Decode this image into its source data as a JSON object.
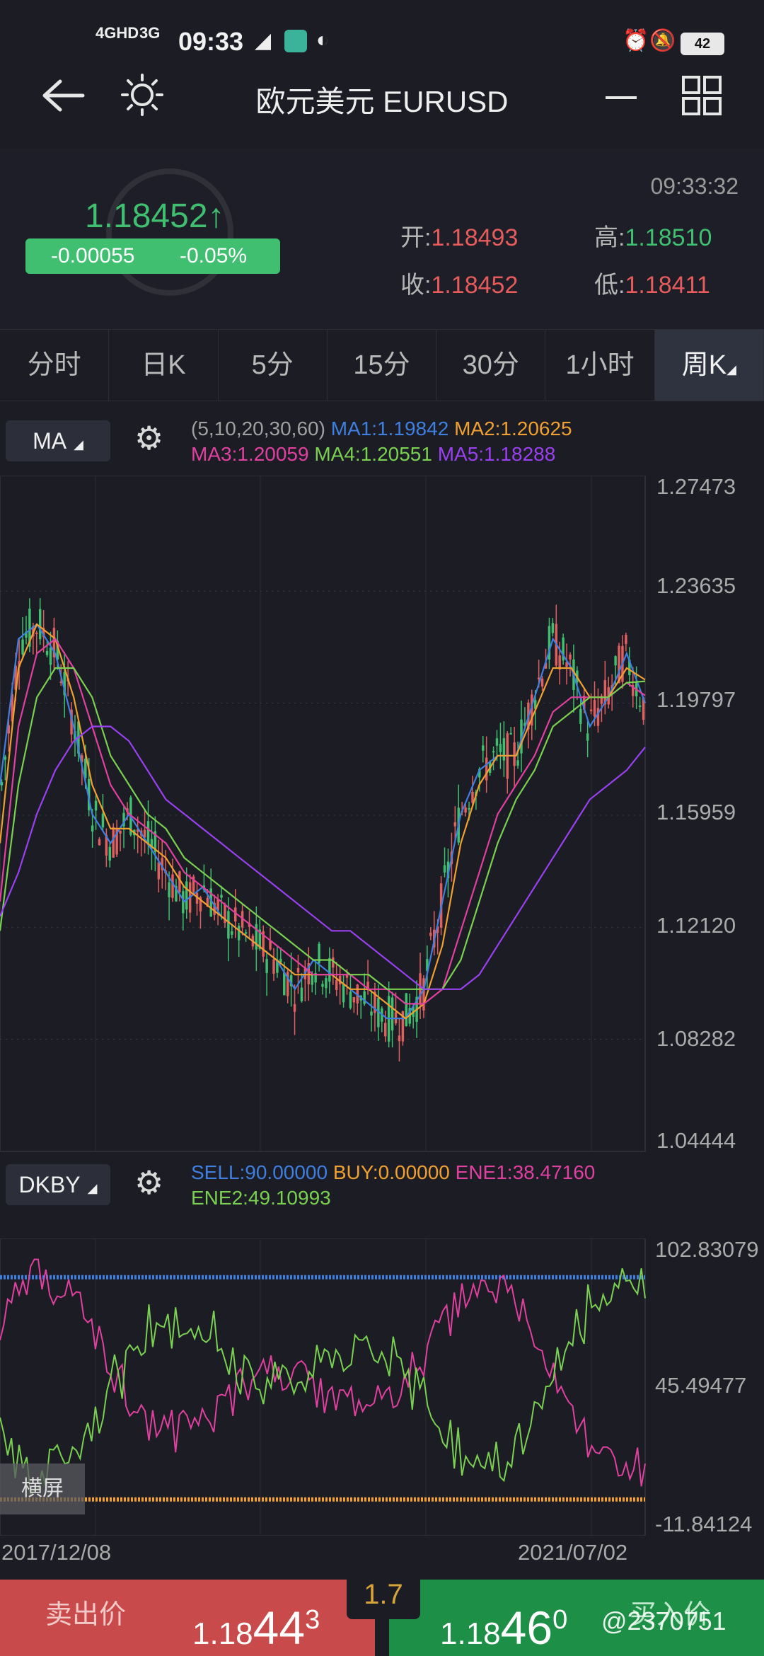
{
  "status_bar": {
    "network1": "4GHD",
    "network2": "3G",
    "time": "09:33",
    "battery": "42",
    "app_icon": "BOSS直聘"
  },
  "header": {
    "title": "欧元美元 EURUSD"
  },
  "quote": {
    "price": "1.18452",
    "arrow": "↑",
    "change": "-0.00055",
    "change_pct": "-0.05%",
    "time": "09:33:32",
    "open_label": "开:",
    "open": "1.18493",
    "high_label": "高:",
    "high": "1.18510",
    "close_label": "收:",
    "close": "1.18452",
    "low_label": "低:",
    "low": "1.18411"
  },
  "tabs": [
    "分时",
    "日K",
    "5分",
    "15分",
    "30分",
    "1小时",
    "周K"
  ],
  "active_tab": "周K",
  "ma_panel": {
    "button": "MA",
    "params": "(5,10,20,30,60)",
    "ma1": "MA1:1.19842",
    "ma2": "MA2:1.20625",
    "ma3": "MA3:1.20059",
    "ma4": "MA4:1.20551",
    "ma5": "MA5:1.18288",
    "colors": {
      "ma1": "#3f7fe0",
      "ma2": "#f0a030",
      "ma3": "#e040a0",
      "ma4": "#7ad050",
      "ma5": "#9a40f0"
    },
    "y_ticks": [
      "1.27473",
      "1.23635",
      "1.19797",
      "1.15959",
      "1.12120",
      "1.08282",
      "1.04444"
    ]
  },
  "dkby_panel": {
    "button": "DKBY",
    "sell": "SELL:90.00000",
    "buy": "BUY:0.00000",
    "ene1": "ENE1:38.47160",
    "ene2": "ENE2:49.10993",
    "y_ticks": [
      "102.83079",
      "45.49477",
      "-11.84124"
    ]
  },
  "x_axis": {
    "start": "2017/12/08",
    "end": "2021/07/02"
  },
  "landscape_button": "横屏",
  "trade_bar": {
    "sell_label": "卖出价",
    "sell_price_main": "1.18",
    "sell_price_big": "44",
    "sell_price_sup": "3",
    "spread": "1.7",
    "buy_label": "买入价",
    "buy_price_main": "1.18",
    "buy_price_big": "46",
    "buy_price_sup": "0",
    "watermark": "@2370751"
  },
  "chart_data": {
    "type": "line",
    "x_start": "2017/12/08",
    "x_end": "2021/07/02",
    "ylim": [
      1.04444,
      1.27473
    ],
    "series": [
      {
        "name": "MA1",
        "values": [
          1.17,
          1.22,
          1.225,
          1.215,
          1.19,
          1.16,
          1.15,
          1.16,
          1.15,
          1.14,
          1.13,
          1.135,
          1.125,
          1.12,
          1.115,
          1.11,
          1.1,
          1.11,
          1.105,
          1.1,
          1.095,
          1.09,
          1.09,
          1.1,
          1.13,
          1.16,
          1.175,
          1.18,
          1.18,
          1.2,
          1.22,
          1.21,
          1.19,
          1.2,
          1.215,
          1.198
        ]
      },
      {
        "name": "MA2",
        "values": [
          1.15,
          1.21,
          1.225,
          1.22,
          1.2,
          1.17,
          1.155,
          1.155,
          1.15,
          1.145,
          1.135,
          1.13,
          1.125,
          1.12,
          1.115,
          1.11,
          1.105,
          1.105,
          1.105,
          1.1,
          1.1,
          1.095,
          1.09,
          1.095,
          1.115,
          1.15,
          1.17,
          1.18,
          1.18,
          1.195,
          1.21,
          1.21,
          1.2,
          1.2,
          1.21,
          1.206
        ]
      },
      {
        "name": "MA3",
        "values": [
          1.13,
          1.19,
          1.215,
          1.22,
          1.21,
          1.19,
          1.17,
          1.16,
          1.155,
          1.15,
          1.14,
          1.135,
          1.13,
          1.125,
          1.12,
          1.115,
          1.11,
          1.105,
          1.105,
          1.105,
          1.1,
          1.1,
          1.095,
          1.095,
          1.1,
          1.12,
          1.14,
          1.16,
          1.17,
          1.18,
          1.195,
          1.2,
          1.2,
          1.2,
          1.205,
          1.2006
        ]
      },
      {
        "name": "MA4",
        "values": [
          1.12,
          1.17,
          1.2,
          1.21,
          1.21,
          1.2,
          1.18,
          1.17,
          1.16,
          1.155,
          1.145,
          1.14,
          1.135,
          1.13,
          1.125,
          1.12,
          1.115,
          1.11,
          1.11,
          1.105,
          1.105,
          1.1,
          1.1,
          1.1,
          1.1,
          1.11,
          1.13,
          1.15,
          1.165,
          1.175,
          1.19,
          1.195,
          1.2,
          1.2,
          1.205,
          1.2055
        ]
      },
      {
        "name": "MA5",
        "values": [
          1.125,
          1.14,
          1.16,
          1.175,
          1.185,
          1.19,
          1.19,
          1.185,
          1.175,
          1.165,
          1.16,
          1.155,
          1.15,
          1.145,
          1.14,
          1.135,
          1.13,
          1.125,
          1.12,
          1.12,
          1.115,
          1.11,
          1.105,
          1.1,
          1.1,
          1.1,
          1.105,
          1.115,
          1.125,
          1.135,
          1.145,
          1.155,
          1.165,
          1.17,
          1.175,
          1.1829
        ]
      }
    ]
  }
}
